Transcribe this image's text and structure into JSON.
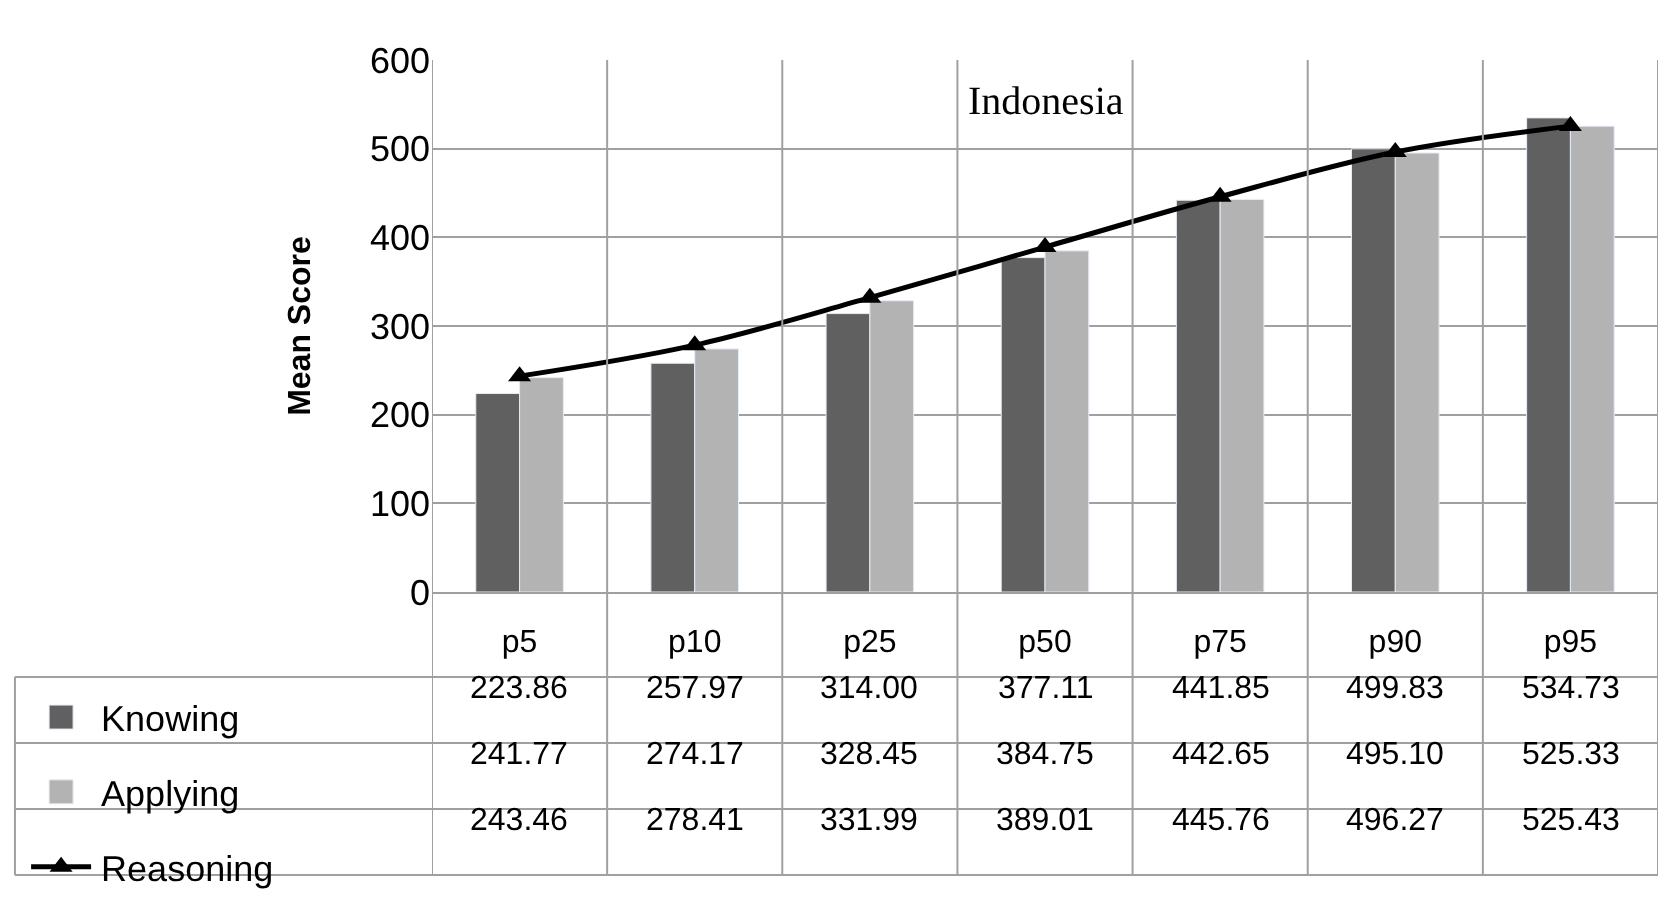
{
  "chart_data": {
    "type": "bar",
    "title": "Indonesia",
    "ylabel": "Mean Score",
    "categories": [
      "p5",
      "p10",
      "p25",
      "p50",
      "p75",
      "p90",
      "p95"
    ],
    "series": [
      {
        "name": "Knowing",
        "color": "#606060",
        "values": [
          223.86,
          257.97,
          314.0,
          377.11,
          441.85,
          499.83,
          534.73
        ],
        "value_labels": [
          "223.86",
          "257.97",
          "314.00",
          "377.11",
          "441.85",
          "499.83",
          "534.73"
        ]
      },
      {
        "name": "Applying",
        "color": "#b3b3b3",
        "values": [
          241.77,
          274.17,
          328.45,
          384.75,
          442.65,
          495.1,
          525.33
        ],
        "value_labels": [
          "241.77",
          "274.17",
          "328.45",
          "384.75",
          "442.65",
          "495.10",
          "525.33"
        ]
      },
      {
        "name": "Reasoning",
        "type": "line",
        "color": "#000000",
        "marker": "triangle",
        "values": [
          243.46,
          278.41,
          331.99,
          389.01,
          445.76,
          496.27,
          525.43
        ],
        "value_labels": [
          "243.46",
          "278.41",
          "331.99",
          "389.01",
          "445.76",
          "496.27",
          "525.43"
        ]
      }
    ],
    "ylim": [
      0,
      600
    ],
    "yticks": [
      0,
      100,
      200,
      300,
      400,
      500,
      600
    ],
    "grid": "y",
    "legend": "bottom left"
  }
}
